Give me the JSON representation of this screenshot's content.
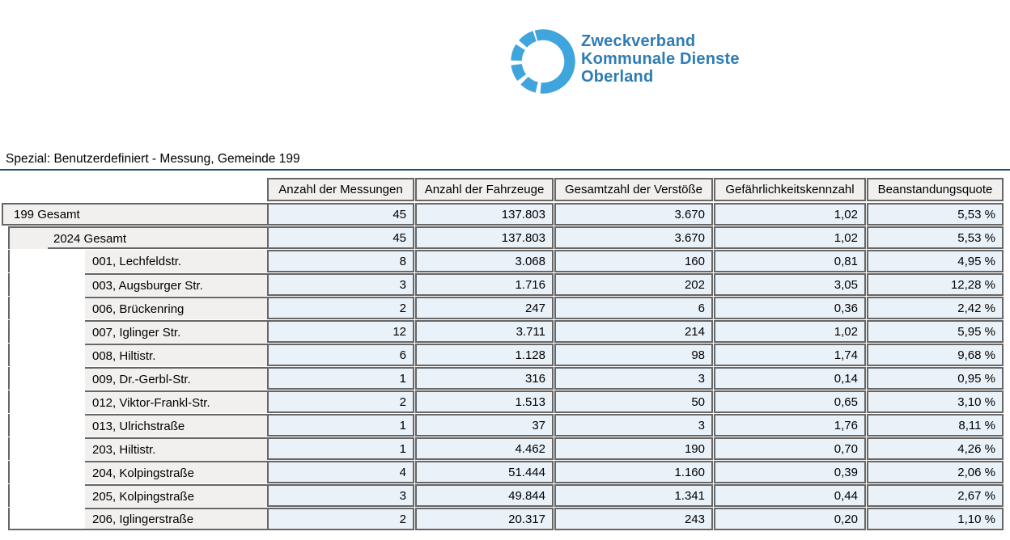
{
  "logo": {
    "line1": "Zweckverband",
    "line2": "Kommunale Dienste",
    "line3": "Oberland",
    "ring_color": "#3FA5DC",
    "text_color": "#2E7CB4"
  },
  "title": "Spezial: Benutzerdefiniert - Messung, Gemeinde 199",
  "colors": {
    "title_rule": "#1D5265",
    "table_border": "#666666",
    "header_bg": "#F1F0EE",
    "data_cell_bg": "#EAF2F9"
  },
  "table": {
    "columns": [
      "Anzahl der Messungen",
      "Anzahl der Fahrzeuge",
      "Gesamtzahl der Verstöße",
      "Gefährlichkeitskennzahl",
      "Beanstandungsquote"
    ],
    "rows": [
      {
        "label": "199 Gesamt",
        "level": 0,
        "values": [
          "45",
          "137.803",
          "3.670",
          "1,02",
          "5,53 %"
        ]
      },
      {
        "label": "2024 Gesamt",
        "level": 1,
        "values": [
          "45",
          "137.803",
          "3.670",
          "1,02",
          "5,53 %"
        ]
      },
      {
        "label": "001, Lechfeldstr.",
        "level": 2,
        "values": [
          "8",
          "3.068",
          "160",
          "0,81",
          "4,95 %"
        ]
      },
      {
        "label": "003, Augsburger Str.",
        "level": 2,
        "values": [
          "3",
          "1.716",
          "202",
          "3,05",
          "12,28 %"
        ]
      },
      {
        "label": "006, Brückenring",
        "level": 2,
        "values": [
          "2",
          "247",
          "6",
          "0,36",
          "2,42 %"
        ]
      },
      {
        "label": "007, Iglinger Str.",
        "level": 2,
        "values": [
          "12",
          "3.711",
          "214",
          "1,02",
          "5,95 %"
        ]
      },
      {
        "label": "008, Hiltistr.",
        "level": 2,
        "values": [
          "6",
          "1.128",
          "98",
          "1,74",
          "9,68 %"
        ]
      },
      {
        "label": "009, Dr.-Gerbl-Str.",
        "level": 2,
        "values": [
          "1",
          "316",
          "3",
          "0,14",
          "0,95 %"
        ]
      },
      {
        "label": "012, Viktor-Frankl-Str.",
        "level": 2,
        "values": [
          "2",
          "1.513",
          "50",
          "0,65",
          "3,10 %"
        ]
      },
      {
        "label": "013, Ulrichstraße",
        "level": 2,
        "values": [
          "1",
          "37",
          "3",
          "1,76",
          "8,11 %"
        ]
      },
      {
        "label": "203, Hiltistr.",
        "level": 2,
        "values": [
          "1",
          "4.462",
          "190",
          "0,70",
          "4,26 %"
        ]
      },
      {
        "label": "204, Kolpingstraße",
        "level": 2,
        "values": [
          "4",
          "51.444",
          "1.160",
          "0,39",
          "2,06 %"
        ]
      },
      {
        "label": "205, Kolpingstraße",
        "level": 2,
        "values": [
          "3",
          "49.844",
          "1.341",
          "0,44",
          "2,67 %"
        ]
      },
      {
        "label": "206, Iglingerstraße",
        "level": 2,
        "values": [
          "2",
          "20.317",
          "243",
          "0,20",
          "1,10 %"
        ]
      }
    ]
  }
}
